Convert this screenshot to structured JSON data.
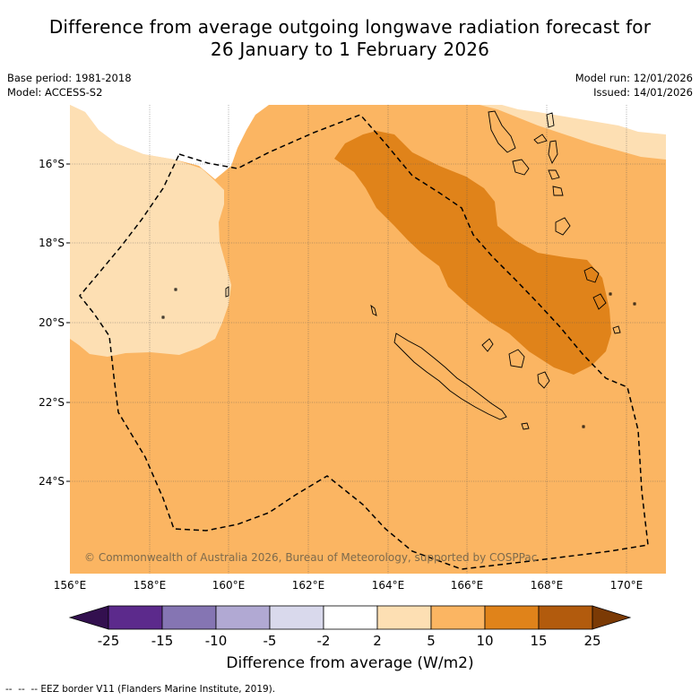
{
  "title_line1": "Difference from average outgoing longwave radiation forecast for",
  "title_line2": "26 January to 1 February 2026",
  "base_period": "Base period: 1981-2018",
  "model": "Model: ACCESS-S2",
  "model_run": "Model run: 12/01/2026",
  "issued": "Issued: 14/01/2026",
  "copyright": "© Commonwealth of Australia 2026, Bureau of Meteorology, supported by COSPPac",
  "lat_labels": [
    "16°S",
    "18°S",
    "20°S",
    "22°S",
    "24°S"
  ],
  "lon_labels": [
    "156°E",
    "158°E",
    "160°E",
    "162°E",
    "164°E",
    "166°E",
    "168°E",
    "170°E"
  ],
  "colorbar": {
    "ticks": [
      "-25",
      "-15",
      "-10",
      "-5",
      "-2",
      "2",
      "5",
      "10",
      "15",
      "25"
    ],
    "colors": [
      "#33104f",
      "#5c2a8c",
      "#8575b3",
      "#b1a9d3",
      "#d9d9ec",
      "#ffffff",
      "#fddfb3",
      "#fbb562",
      "#e0831a",
      "#b25b0d",
      "#7b3a05"
    ],
    "title": "Difference from average (W/m2)"
  },
  "footnote": "--  --  -- EEZ border V11 (Flanders Marine Institute, 2019).",
  "map_colors": {
    "band_2_5": "#fddfb3",
    "band_5_10": "#fbb562",
    "band_10_15": "#e0831a"
  }
}
